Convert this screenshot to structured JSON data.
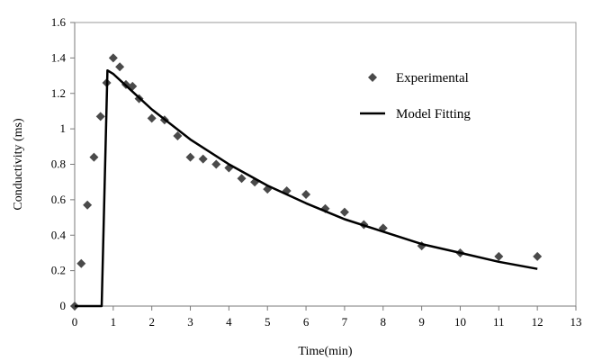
{
  "chart_data": {
    "type": "scatter",
    "title": "",
    "xlabel": "Time(min)",
    "ylabel": "Conductivity (ms)",
    "xlim": [
      0,
      13
    ],
    "ylim": [
      0,
      1.6
    ],
    "xticks": [
      "0",
      "1",
      "2",
      "3",
      "4",
      "5",
      "6",
      "7",
      "8",
      "9",
      "10",
      "11",
      "12",
      "13"
    ],
    "yticks": [
      "0",
      "0.2",
      "0.4",
      "0.6",
      "0.8",
      "1",
      "1.2",
      "1.4",
      "1.6"
    ],
    "grid": false,
    "legend_position": "top-right",
    "series": [
      {
        "name": "Experimental",
        "kind": "scatter",
        "marker": "diamond",
        "color": "#4a4a4a",
        "x": [
          0,
          0.17,
          0.33,
          0.5,
          0.67,
          0.83,
          1.0,
          1.17,
          1.33,
          1.5,
          1.67,
          2.0,
          2.33,
          2.67,
          3.0,
          3.33,
          3.67,
          4.0,
          4.33,
          4.67,
          5.0,
          5.5,
          6.0,
          6.5,
          7.0,
          7.5,
          8.0,
          9.0,
          10.0,
          11.0,
          12.0
        ],
        "y": [
          0,
          0.24,
          0.57,
          0.84,
          1.07,
          1.26,
          1.4,
          1.35,
          1.25,
          1.24,
          1.17,
          1.06,
          1.05,
          0.96,
          0.84,
          0.83,
          0.8,
          0.78,
          0.72,
          0.7,
          0.66,
          0.65,
          0.63,
          0.55,
          0.53,
          0.46,
          0.44,
          0.34,
          0.3,
          0.28,
          0.28
        ]
      },
      {
        "name": "Model Fitting",
        "kind": "line",
        "color": "#000000",
        "x": [
          0,
          0.7,
          0.85,
          1.0,
          1.5,
          2.0,
          3.0,
          4.0,
          5.0,
          6.0,
          7.0,
          8.0,
          9.0,
          10.0,
          11.0,
          12.0
        ],
        "y": [
          0,
          0,
          1.33,
          1.31,
          1.21,
          1.11,
          0.94,
          0.8,
          0.68,
          0.58,
          0.49,
          0.42,
          0.35,
          0.3,
          0.25,
          0.21
        ]
      }
    ]
  }
}
